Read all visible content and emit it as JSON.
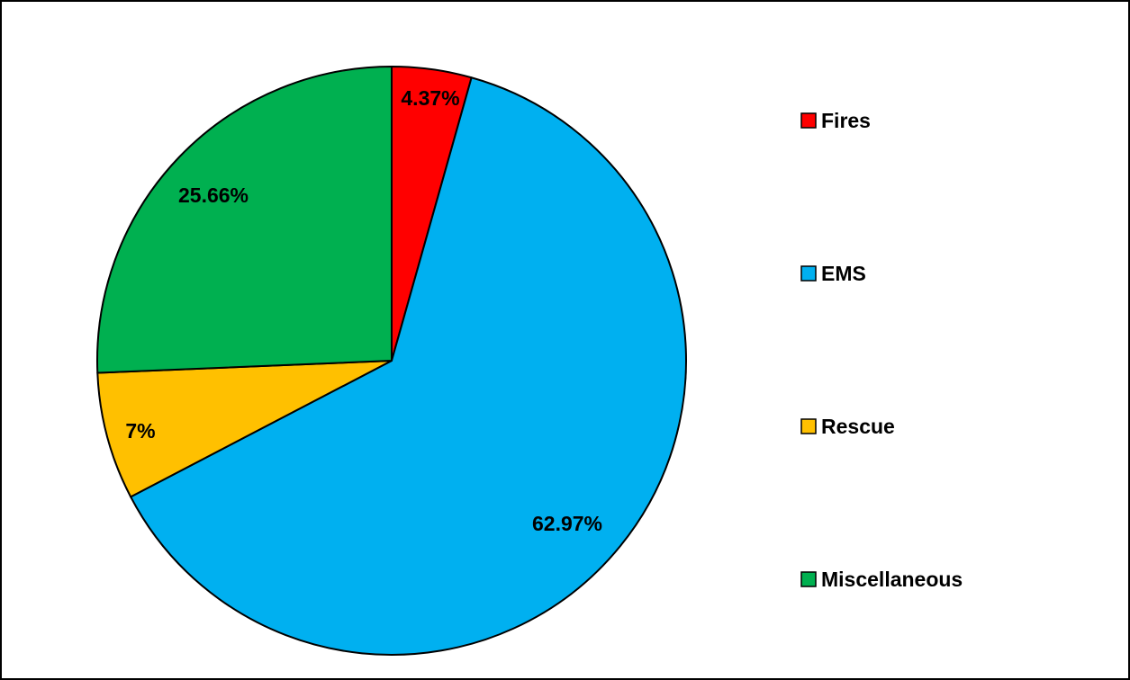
{
  "chart_data": {
    "type": "pie",
    "categories": [
      "Fires",
      "EMS",
      "Rescue",
      "Miscellaneous"
    ],
    "values": [
      4.37,
      62.97,
      7,
      25.66
    ],
    "data_labels": [
      "4.37%",
      "62.97%",
      "7%",
      "25.66%"
    ],
    "colors": [
      "#FF0000",
      "#00B0F0",
      "#FFC000",
      "#00B050"
    ],
    "start_angle": "12 o'clock",
    "direction": "clockwise",
    "legend": {
      "position": "right",
      "entries": [
        "Fires",
        "EMS",
        "Rescue",
        "Miscellaneous"
      ]
    },
    "title": "",
    "slice_border_color": "#000000"
  }
}
